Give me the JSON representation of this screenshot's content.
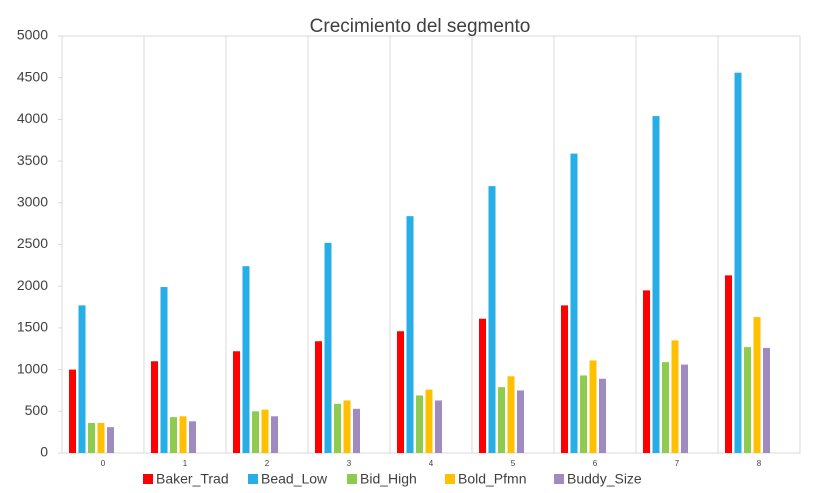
{
  "chart_data": {
    "type": "bar",
    "title": "Crecimiento del segmento",
    "categories": [
      "0",
      "1",
      "2",
      "3",
      "4",
      "5",
      "6",
      "7",
      "8"
    ],
    "series": [
      {
        "name": "Baker_Trad",
        "color": "#ff0000",
        "values": [
          1000,
          1100,
          1220,
          1340,
          1460,
          1610,
          1770,
          1950,
          2130
        ]
      },
      {
        "name": "Bead_Low",
        "color": "#27aee6",
        "values": [
          1770,
          1990,
          2240,
          2520,
          2840,
          3200,
          3590,
          4040,
          4560
        ]
      },
      {
        "name": "Bid_High",
        "color": "#8fcb4f",
        "values": [
          360,
          430,
          500,
          590,
          690,
          790,
          930,
          1090,
          1270
        ]
      },
      {
        "name": "Bold_Pfmn",
        "color": "#ffc000",
        "values": [
          360,
          440,
          520,
          630,
          760,
          920,
          1110,
          1350,
          1630
        ]
      },
      {
        "name": "Buddy_Size",
        "color": "#a08bc0",
        "values": [
          310,
          380,
          440,
          530,
          630,
          750,
          890,
          1060,
          1260
        ]
      }
    ],
    "ylim": [
      0,
      5000
    ],
    "yticks": [
      0,
      500,
      1000,
      1500,
      2000,
      2500,
      3000,
      3500,
      4000,
      4500,
      5000
    ]
  }
}
